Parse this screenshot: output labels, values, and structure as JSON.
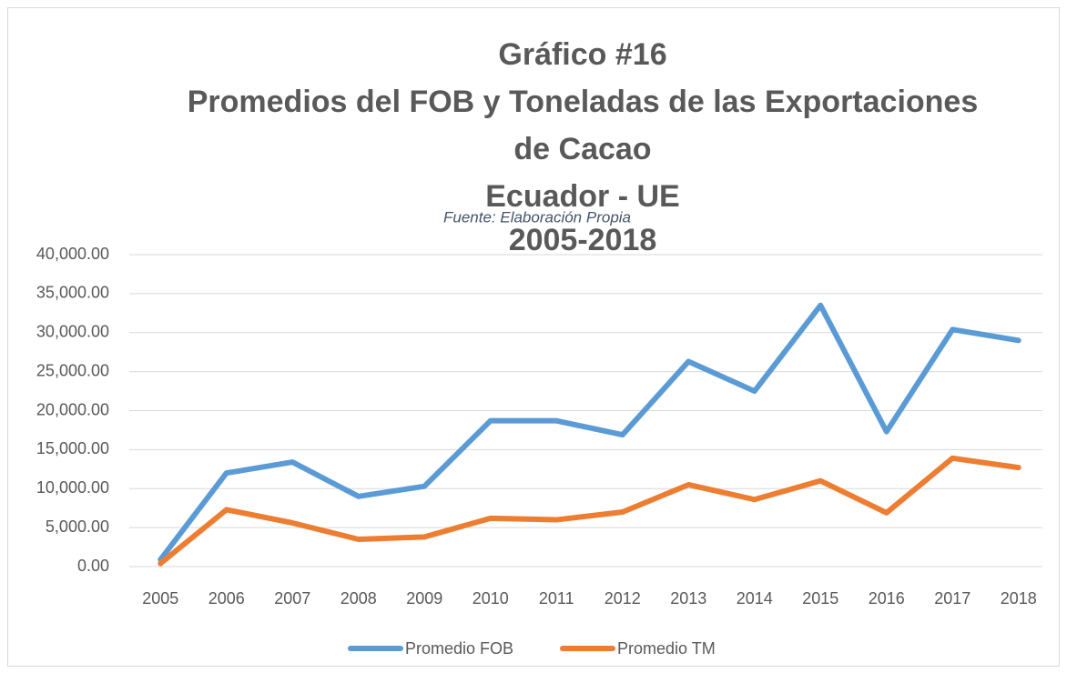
{
  "chart_data": {
    "type": "line",
    "title": [
      "Gráfico #16",
      "Promedios del FOB y Toneladas de las Exportaciones",
      "de Cacao",
      "Ecuador - UE",
      "2005-2018"
    ],
    "subtitle": "Fuente: Elaboración Propia",
    "categories": [
      "2005",
      "2006",
      "2007",
      "2008",
      "2009",
      "2010",
      "2011",
      "2012",
      "2013",
      "2014",
      "2015",
      "2016",
      "2017",
      "2018"
    ],
    "series": [
      {
        "name": "Promedio FOB",
        "color": "#5b9bd5",
        "values": [
          900,
          12000,
          13400,
          9000,
          10300,
          18700,
          18700,
          16900,
          26300,
          22500,
          33500,
          17300,
          30400,
          29000
        ]
      },
      {
        "name": "Promedio TM",
        "color": "#ed7d31",
        "values": [
          400,
          7300,
          5600,
          3500,
          3800,
          6200,
          6000,
          7000,
          10500,
          8600,
          11000,
          6900,
          13900,
          12700
        ]
      }
    ],
    "ylim": [
      0,
      40000
    ],
    "yticks": [
      {
        "value": 0,
        "label": "0.00"
      },
      {
        "value": 5000,
        "label": "5,000.00"
      },
      {
        "value": 10000,
        "label": "10,000.00"
      },
      {
        "value": 15000,
        "label": "15,000.00"
      },
      {
        "value": 20000,
        "label": "20,000.00"
      },
      {
        "value": 25000,
        "label": "25,000.00"
      },
      {
        "value": 30000,
        "label": "30,000.00"
      },
      {
        "value": 35000,
        "label": "35,000.00"
      },
      {
        "value": 40000,
        "label": "40,000.00"
      }
    ],
    "grid": true,
    "legend": "bottom"
  }
}
